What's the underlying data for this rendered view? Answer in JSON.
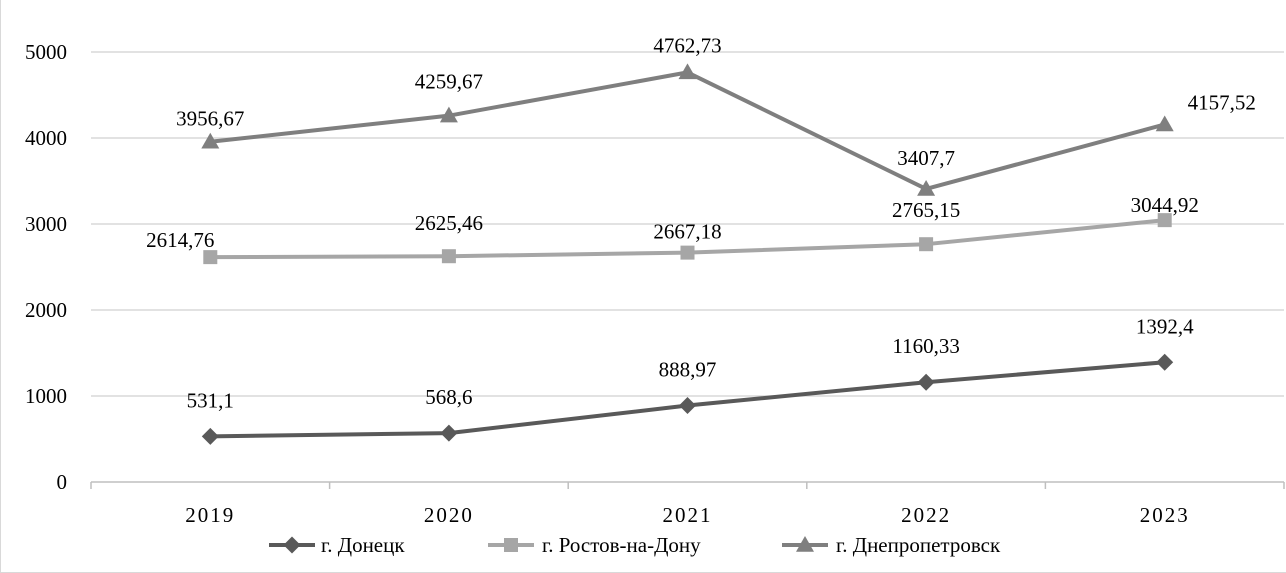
{
  "chart_data": {
    "type": "line",
    "title": "",
    "xlabel": "",
    "ylabel": "",
    "categories": [
      "2019",
      "2020",
      "2021",
      "2022",
      "2023"
    ],
    "ylim": [
      0,
      5000
    ],
    "yticks": [
      "0",
      "1000",
      "2000",
      "3000",
      "4000",
      "5000"
    ],
    "grid": "horizontal",
    "legend_position": "bottom",
    "series": [
      {
        "name": "г. Донецк",
        "values": [
          531.1,
          568.6,
          888.97,
          1160.33,
          1392.4
        ],
        "labels": [
          "531,1",
          "568,6",
          "888,97",
          "1160,33",
          "1392,4"
        ],
        "color": "#595959",
        "marker": "diamond"
      },
      {
        "name": "г. Ростов-на-Дону",
        "values": [
          2614.76,
          2625.46,
          2667.18,
          2765.15,
          3044.92
        ],
        "labels": [
          "2614,76",
          "2625,46",
          "2667,18",
          "2765,15",
          "3044,92"
        ],
        "color": "#a6a6a6",
        "marker": "square"
      },
      {
        "name": "г. Днепропетровск",
        "values": [
          3956.67,
          4259.67,
          4762.73,
          3407.7,
          4157.52
        ],
        "labels": [
          "3956,67",
          "4259,67",
          "4762,73",
          "3407,7",
          "4157,52"
        ],
        "color": "#7f7f7f",
        "marker": "triangle"
      }
    ]
  },
  "colors": {
    "gridline": "#d9d9d9",
    "axis": "#bfbfbf"
  }
}
